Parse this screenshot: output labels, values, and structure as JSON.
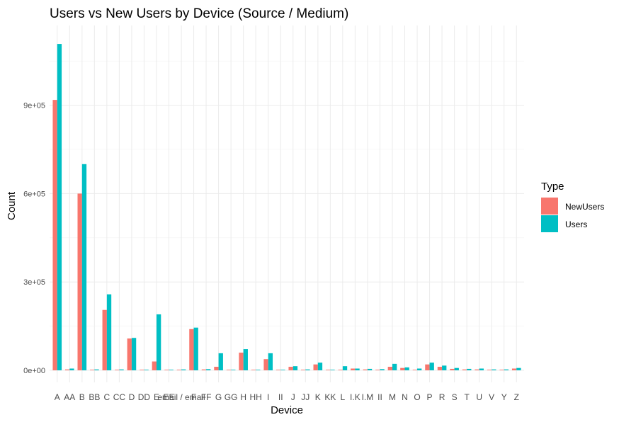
{
  "chart_data": {
    "type": "bar",
    "title": "Users vs New Users by Device (Source / Medium)",
    "xlabel": "Device",
    "ylabel": "Count",
    "ylim": [
      0,
      1000000
    ],
    "yticks": [
      {
        "value": 0,
        "label": "0e+00"
      },
      {
        "value": 300000,
        "label": "3e+05"
      },
      {
        "value": 600000,
        "label": "6e+05"
      },
      {
        "value": 900000,
        "label": "9e+05"
      }
    ],
    "grid": true,
    "legend": {
      "title": "Type",
      "position": "right"
    },
    "categories": [
      "A",
      "AA",
      "B",
      "BB",
      "C",
      "CC",
      "D",
      "DD",
      "E",
      "EE",
      "email / email",
      "F",
      "FF",
      "G",
      "GG",
      "H",
      "HH",
      "I",
      "II",
      "J",
      "JJ",
      "K",
      "KK",
      "L",
      "I.K",
      "I.M",
      "II",
      "M",
      "N",
      "O",
      "P",
      "R",
      "S",
      "T",
      "U",
      "V",
      "Y",
      "Z"
    ],
    "series": [
      {
        "name": "NewUsers",
        "color": "#F8766D",
        "values": [
          918000,
          3000,
          600000,
          2000,
          205000,
          2000,
          108000,
          2000,
          30000,
          1000,
          2000,
          140000,
          3000,
          12000,
          1000,
          60000,
          1000,
          38000,
          1000,
          12000,
          2000,
          20000,
          1000,
          2000,
          6000,
          3000,
          2000,
          12000,
          8000,
          2000,
          20000,
          12000,
          5000,
          3000,
          3000,
          2000,
          2000,
          6000
        ]
      },
      {
        "name": "Users",
        "color": "#00BFC4",
        "values": [
          1108000,
          6000,
          700000,
          3000,
          258000,
          3000,
          110000,
          2000,
          190000,
          2000,
          3000,
          145000,
          4000,
          58000,
          1000,
          72000,
          1000,
          58000,
          1000,
          14000,
          3000,
          26000,
          1000,
          14000,
          6000,
          5000,
          4000,
          22000,
          10000,
          6000,
          26000,
          16000,
          8000,
          5000,
          6000,
          3000,
          3000,
          8000
        ]
      }
    ]
  }
}
